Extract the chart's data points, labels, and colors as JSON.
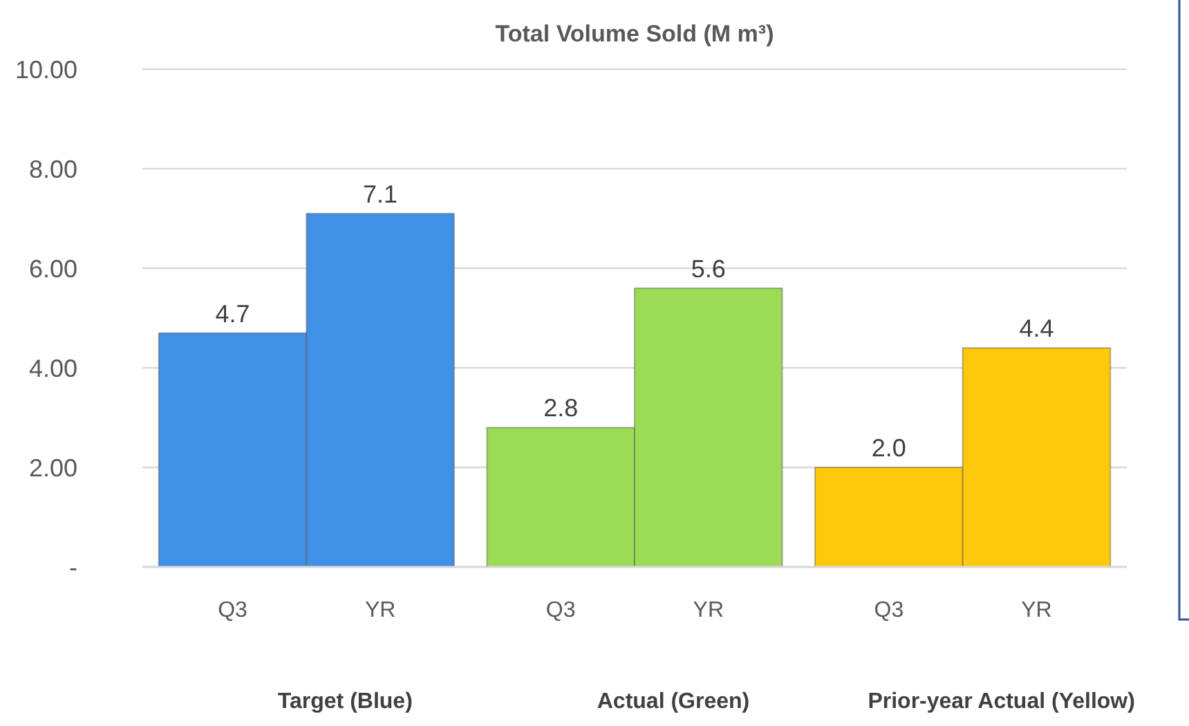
{
  "chart_data": {
    "type": "bar",
    "title": "Total Volume Sold (M m³)",
    "categories": [
      "Q3",
      "YR",
      "Q3",
      "YR",
      "Q3",
      "YR"
    ],
    "values": [
      4.7,
      7.1,
      2.8,
      5.6,
      2.0,
      4.4
    ],
    "colors": [
      "#4190e8",
      "#4190e8",
      "#9bdb55",
      "#9bdb55",
      "#ffc80a",
      "#ffc80a"
    ],
    "value_labels": [
      "4.7",
      "7.1",
      "2.8",
      "5.6",
      "2.0",
      "4.4"
    ],
    "ylim": [
      0,
      10
    ],
    "yticks": [
      {
        "value": 0,
        "label": "-"
      },
      {
        "value": 2,
        "label": "2.00"
      },
      {
        "value": 4,
        "label": "4.00"
      },
      {
        "value": 6,
        "label": "6.00"
      },
      {
        "value": 8,
        "label": "8.00"
      },
      {
        "value": 10,
        "label": "10.00"
      }
    ],
    "grid": "y",
    "annotations": [
      "Target (Blue)",
      "Actual (Green)",
      "Prior-year Actual (Yellow)"
    ]
  }
}
